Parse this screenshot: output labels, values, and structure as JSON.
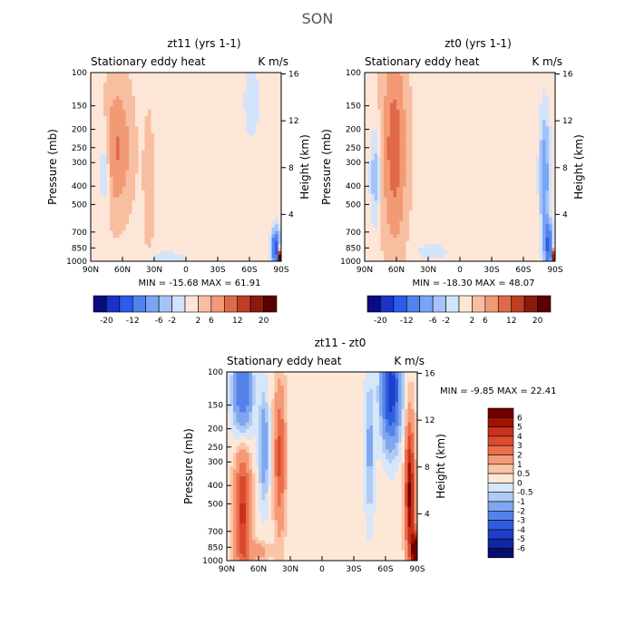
{
  "figure_title": "SON",
  "chart_data": [
    {
      "type": "heatmap",
      "title": "zt11 (yrs 1-1)",
      "subtitle_left": "Stationary eddy heat",
      "subtitle_right": "K m/s",
      "xlabel": "",
      "ylabel": "Pressure (mb)",
      "ylabel_right": "Height (km)",
      "x_ticks": [
        "90N",
        "60N",
        "30N",
        "0",
        "30S",
        "60S",
        "90S"
      ],
      "x_range": [
        90,
        -90
      ],
      "y_ticks": [
        "100",
        "150",
        "200",
        "250",
        "300",
        "400",
        "500",
        "700",
        "850",
        "1000"
      ],
      "y_range": [
        1000,
        100
      ],
      "right_ticks": [
        "16",
        "12",
        "8",
        "4"
      ],
      "stats": "MIN = -15.68  MAX =  61.91",
      "colorbar_labels": [
        "-20",
        "-12",
        "-6",
        "-2",
        "2",
        "6",
        "12",
        "20"
      ],
      "features": [
        {
          "desc": "positive band",
          "lat": 65,
          "level": "mid-upper",
          "sign": "positive"
        },
        {
          "desc": "negative core",
          "lat": 75,
          "level": "mid",
          "sign": "negative"
        },
        {
          "desc": "negative jet",
          "lat": -62,
          "level": "upper",
          "sign": "negative"
        },
        {
          "desc": "strong dipole",
          "lat": -85,
          "level": "surface",
          "sign": "mixed"
        }
      ]
    },
    {
      "type": "heatmap",
      "title": "zt0 (yrs 1-1)",
      "subtitle_left": "Stationary eddy heat",
      "subtitle_right": "K m/s",
      "xlabel": "",
      "ylabel": "Pressure (mb)",
      "ylabel_right": "Height (km)",
      "x_ticks": [
        "90N",
        "60N",
        "30N",
        "0",
        "30S",
        "60S",
        "90S"
      ],
      "x_range": [
        90,
        -90
      ],
      "y_ticks": [
        "100",
        "150",
        "200",
        "250",
        "300",
        "400",
        "500",
        "700",
        "850",
        "1000"
      ],
      "y_range": [
        1000,
        100
      ],
      "right_ticks": [
        "16",
        "12",
        "8",
        "4"
      ],
      "stats": "MIN = -18.30  MAX =  48.07",
      "colorbar_labels": [
        "-20",
        "-12",
        "-6",
        "-2",
        "2",
        "6",
        "12",
        "20"
      ],
      "features": [
        {
          "desc": "positive band",
          "lat": 62,
          "level": "whole column",
          "sign": "positive"
        },
        {
          "desc": "negative core",
          "lat": 78,
          "level": "mid",
          "sign": "negative"
        },
        {
          "desc": "negative column",
          "lat": -78,
          "level": "mid-lower",
          "sign": "negative"
        }
      ]
    },
    {
      "type": "heatmap",
      "title": "zt11 - zt0",
      "subtitle_left": "Stationary eddy heat",
      "subtitle_right": "K m/s",
      "xlabel": "",
      "ylabel": "Pressure (mb)",
      "ylabel_right": "Height (km)",
      "x_ticks": [
        "90N",
        "60N",
        "30N",
        "0",
        "30S",
        "60S",
        "90S"
      ],
      "x_range": [
        90,
        -90
      ],
      "y_ticks": [
        "100",
        "150",
        "200",
        "250",
        "300",
        "400",
        "500",
        "700",
        "850",
        "1000"
      ],
      "y_range": [
        1000,
        100
      ],
      "right_ticks": [
        "16",
        "12",
        "8",
        "4"
      ],
      "stats": "MIN =  -9.85   MAX =  22.41",
      "colorbar_labels": [
        "6",
        "5",
        "4",
        "3",
        "2",
        "1",
        "0.5",
        "0",
        "-0.5",
        "-1",
        "-2",
        "-3",
        "-4",
        "-5",
        "-6"
      ],
      "features": [
        {
          "desc": "negative upper",
          "lat": 75,
          "level": "upper",
          "sign": "negative"
        },
        {
          "desc": "positive lower",
          "lat": 75,
          "level": "lower",
          "sign": "positive"
        },
        {
          "desc": "positive column",
          "lat": 40,
          "level": "mid",
          "sign": "positive"
        },
        {
          "desc": "negative jet",
          "lat": -65,
          "level": "upper",
          "sign": "negative"
        },
        {
          "desc": "strong positive",
          "lat": -82,
          "level": "lower-mid",
          "sign": "positive"
        }
      ]
    }
  ],
  "colors": {
    "scale12": [
      "#0a0a82",
      "#1932c8",
      "#2d5ae6",
      "#5082f0",
      "#7aa5f5",
      "#a5c3f7",
      "#d2e3fc",
      "#fde6d7",
      "#f8bea0",
      "#f29a75",
      "#e0694a",
      "#c03c24",
      "#8c1a0a",
      "#5a0000"
    ],
    "scale16": [
      "#6e0000",
      "#a01400",
      "#c8321e",
      "#dc4b2d",
      "#ec6e4b",
      "#f59a78",
      "#fbc4a7",
      "#fde8d8",
      "#d6e6fb",
      "#aecbf5",
      "#7fa7ef",
      "#5582ea",
      "#2f5ddf",
      "#1d3fcb",
      "#0f27a0",
      "#06106c"
    ],
    "positive_light": "#fde6d7",
    "negative_light": "#d2e3fc"
  }
}
